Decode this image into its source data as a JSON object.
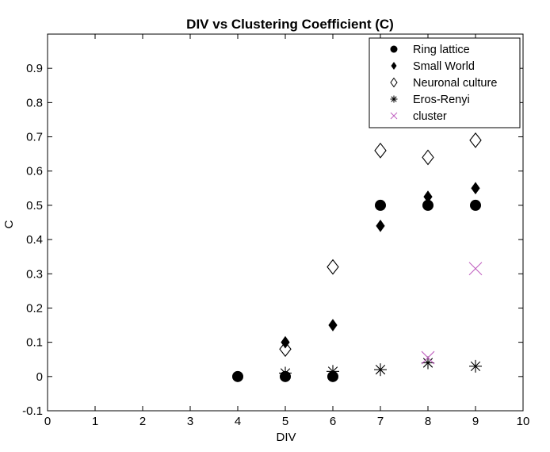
{
  "chart_data": {
    "type": "scatter",
    "title": "DIV vs Clustering Coefficient (C)",
    "xlabel": "DIV",
    "ylabel": "C",
    "xlim": [
      0,
      10
    ],
    "ylim": [
      -0.1,
      1.0
    ],
    "xticks": [
      0,
      1,
      2,
      3,
      4,
      5,
      6,
      7,
      8,
      9,
      10
    ],
    "xtick_labels": [
      "0",
      "1",
      "2",
      "3",
      "4",
      "5",
      "6",
      "7",
      "8",
      "9",
      "10"
    ],
    "yticks": [
      -0.1,
      0,
      0.1,
      0.2,
      0.3,
      0.4,
      0.5,
      0.6,
      0.7,
      0.8,
      0.9
    ],
    "ytick_labels": [
      "-0.1",
      "0",
      "0.1",
      "0.2",
      "0.3",
      "0.4",
      "0.5",
      "0.6",
      "0.7",
      "0.8",
      "0.9"
    ],
    "grid": false,
    "legend_position": "top-right",
    "series": [
      {
        "name": "Ring lattice",
        "marker": "filled-circle",
        "color": "#000000",
        "x": [
          4,
          5,
          6,
          7,
          8,
          9
        ],
        "y": [
          0,
          0,
          0,
          0.5,
          0.5,
          0.5
        ]
      },
      {
        "name": "Small World",
        "marker": "filled-diamond",
        "color": "#000000",
        "x": [
          5,
          6,
          7,
          8,
          9
        ],
        "y": [
          0.1,
          0.15,
          0.44,
          0.525,
          0.55
        ]
      },
      {
        "name": "Neuronal culture",
        "marker": "open-diamond",
        "color": "#000000",
        "x": [
          5,
          6,
          7,
          8,
          9
        ],
        "y": [
          0.08,
          0.32,
          0.66,
          0.64,
          0.69
        ]
      },
      {
        "name": "Eros-Renyi",
        "marker": "asterisk",
        "color": "#000000",
        "x": [
          5,
          6,
          7,
          8,
          9
        ],
        "y": [
          0.01,
          0.015,
          0.02,
          0.04,
          0.03
        ]
      },
      {
        "name": "cluster",
        "marker": "x",
        "color": "#c060c0",
        "x": [
          8,
          9
        ],
        "y": [
          0.055,
          0.315
        ]
      }
    ]
  }
}
